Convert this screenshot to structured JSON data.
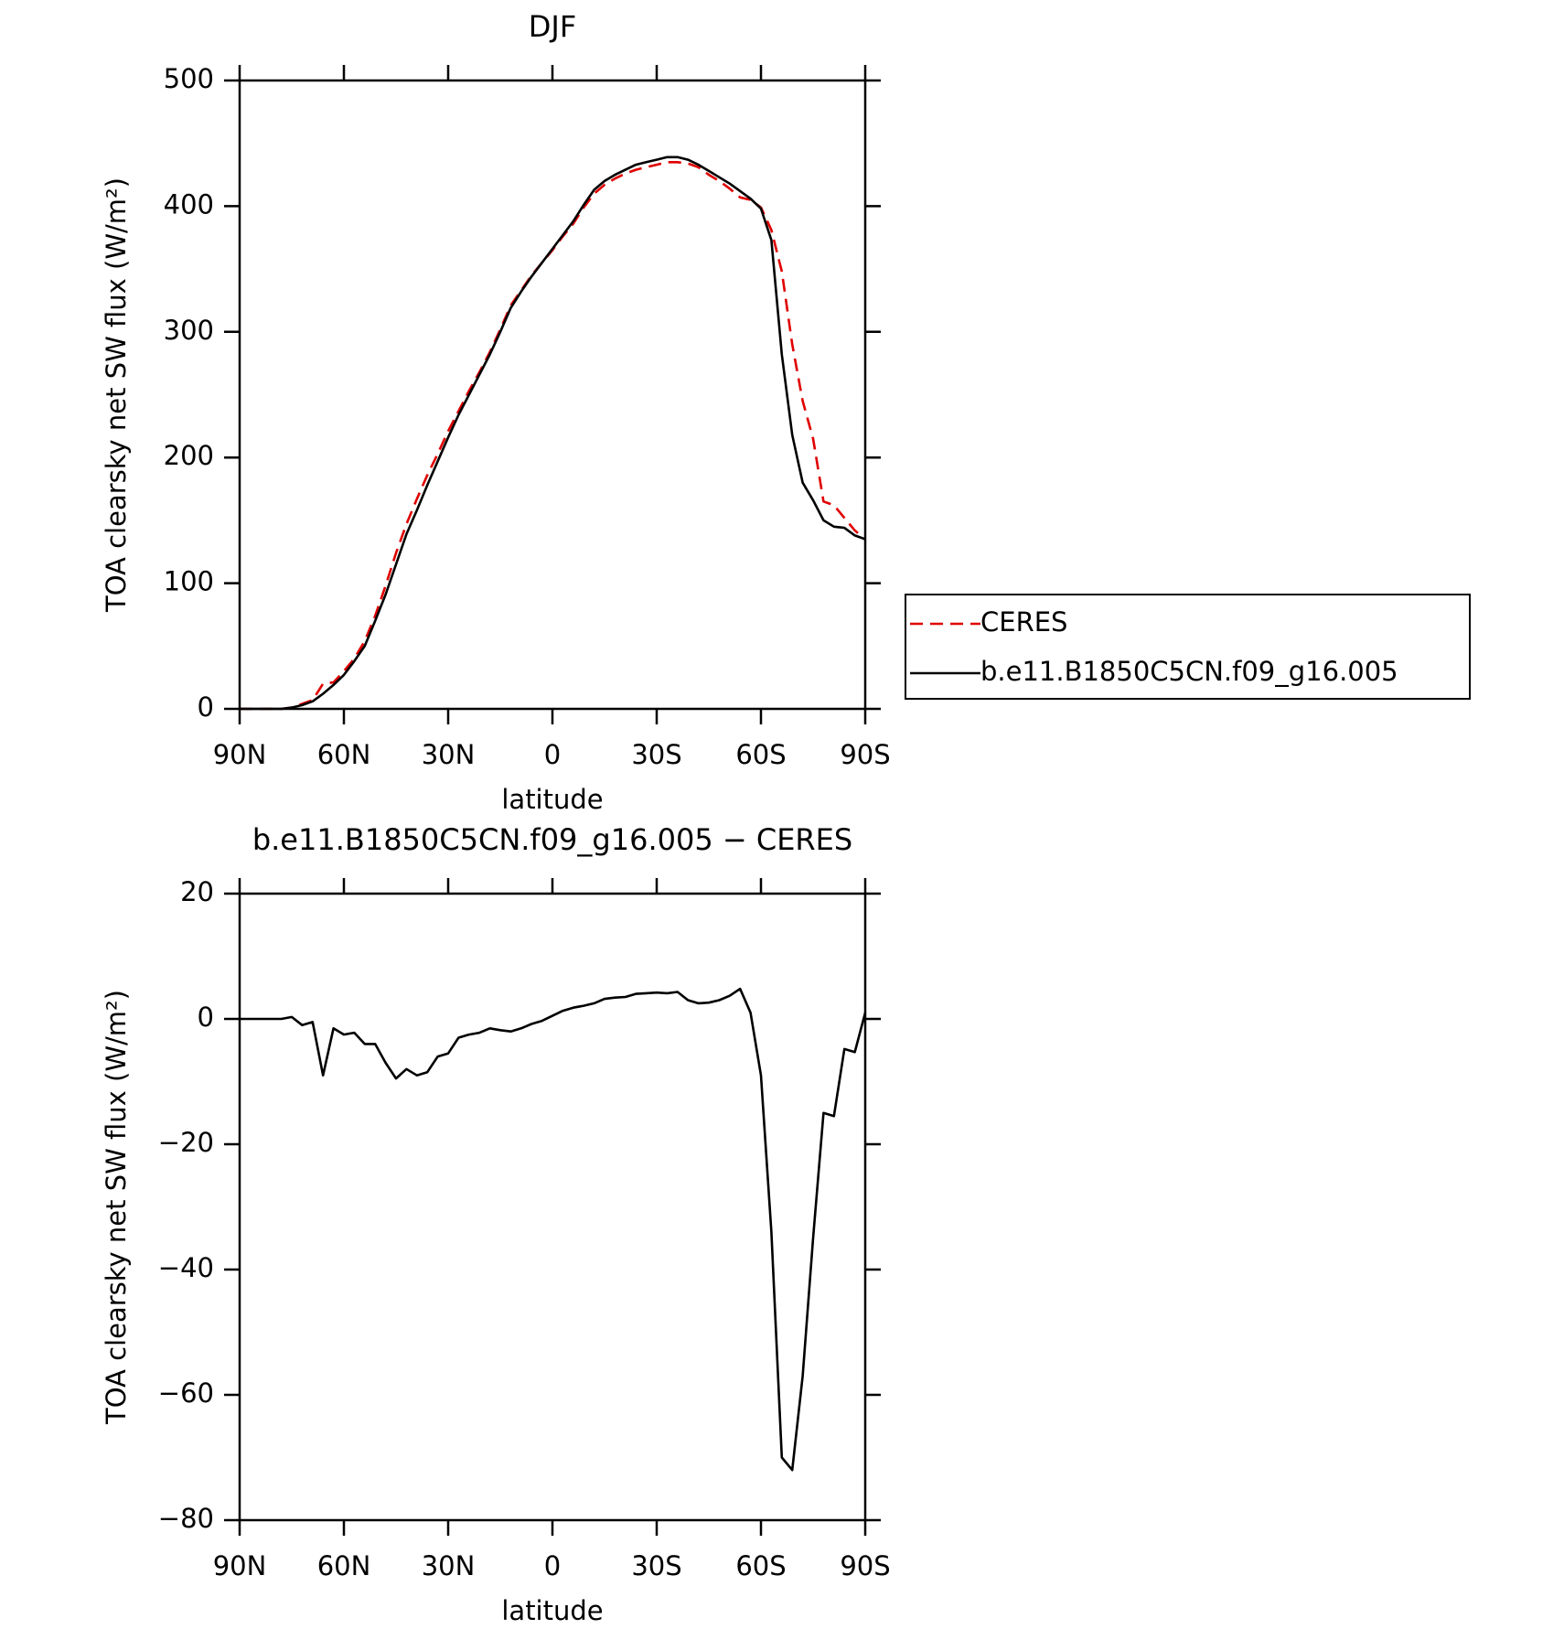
{
  "chart_data": [
    {
      "type": "line",
      "title": "DJF",
      "xlabel": "latitude",
      "ylabel": "TOA clearsky net SW flux (W/m²)",
      "x": [
        90,
        87,
        84,
        81,
        78,
        75,
        72,
        69,
        66,
        63,
        60,
        57,
        54,
        51,
        48,
        45,
        42,
        39,
        36,
        33,
        30,
        27,
        24,
        21,
        18,
        15,
        12,
        9,
        6,
        3,
        0,
        -3,
        -6,
        -9,
        -12,
        -15,
        -18,
        -21,
        -24,
        -27,
        -30,
        -33,
        -36,
        -39,
        -42,
        -45,
        -48,
        -51,
        -54,
        -57,
        -60,
        -63,
        -66,
        -69,
        -72,
        -75,
        -78,
        -81,
        -84,
        -87,
        -90
      ],
      "series": [
        {
          "name": "CERES",
          "color": "#e00000",
          "linestyle": "dashed",
          "values": [
            0,
            0,
            0,
            0,
            0,
            1,
            4,
            7,
            20,
            21,
            30,
            40,
            54,
            74,
            98,
            124,
            147,
            167,
            186,
            203,
            221,
            237,
            253,
            268,
            284,
            302,
            321,
            333,
            345,
            355,
            365,
            376,
            386,
            399,
            410,
            417,
            422,
            426,
            429,
            431,
            433,
            435,
            435,
            434,
            431,
            425,
            420,
            414,
            407,
            405,
            399,
            381,
            348,
            290,
            245,
            215,
            165,
            162,
            152,
            142,
            135
          ]
        },
        {
          "name": "b.e11.B1850C5CN.f09_g16.005",
          "color": "#000000",
          "linestyle": "solid",
          "values": [
            0,
            0,
            0,
            0,
            0,
            1,
            3,
            6,
            12,
            19,
            27,
            38,
            50,
            70,
            91,
            115,
            139,
            158,
            178,
            197,
            216,
            234,
            250,
            266,
            282,
            300,
            319,
            332,
            344,
            355,
            366,
            377,
            388,
            401,
            413,
            420,
            425,
            429,
            433,
            435,
            437,
            439,
            439,
            437,
            433,
            428,
            423,
            418,
            412,
            406,
            398,
            373,
            282,
            218,
            180,
            166,
            150,
            145,
            144,
            138,
            135
          ]
        }
      ],
      "xlim": [
        90,
        -90
      ],
      "xticks": [
        {
          "value": 90,
          "label": "90N"
        },
        {
          "value": 60,
          "label": "60N"
        },
        {
          "value": 30,
          "label": "30N"
        },
        0,
        {
          "value": -30,
          "label": "30S"
        },
        {
          "value": -60,
          "label": "60S"
        },
        {
          "value": -90,
          "label": "90S"
        }
      ],
      "ylim": [
        0,
        500
      ],
      "yticks": [
        0,
        100,
        200,
        300,
        400,
        500
      ],
      "legend": "right"
    },
    {
      "type": "line",
      "title": "b.e11.B1850C5CN.f09_g16.005 − CERES",
      "xlabel": "latitude",
      "ylabel": "TOA clearsky net SW flux (W/m²)",
      "x": [
        90,
        87,
        84,
        81,
        78,
        75,
        72,
        69,
        66,
        63,
        60,
        57,
        54,
        51,
        48,
        45,
        42,
        39,
        36,
        33,
        30,
        27,
        24,
        21,
        18,
        15,
        12,
        9,
        6,
        3,
        0,
        -3,
        -6,
        -9,
        -12,
        -15,
        -18,
        -21,
        -24,
        -27,
        -30,
        -33,
        -36,
        -39,
        -42,
        -45,
        -48,
        -51,
        -54,
        -57,
        -60,
        -63,
        -66,
        -69,
        -72,
        -75,
        -78,
        -81,
        -84,
        -87,
        -90
      ],
      "series": [
        {
          "color": "#000000",
          "linestyle": "solid",
          "values": [
            0,
            0,
            0,
            0,
            0,
            0.3,
            -1,
            -0.5,
            -9,
            -1.5,
            -2.5,
            -2.2,
            -4,
            -4,
            -7,
            -9.5,
            -8,
            -9,
            -8.5,
            -6,
            -5.5,
            -3,
            -2.5,
            -2.2,
            -1.5,
            -1.8,
            -2,
            -1.5,
            -0.8,
            -0.3,
            0.5,
            1.3,
            1.8,
            2.1,
            2.5,
            3.2,
            3.4,
            3.5,
            4,
            4.1,
            4.2,
            4.1,
            4.3,
            3,
            2.5,
            2.6,
            3,
            3.7,
            4.8,
            1,
            -9,
            -34,
            -70,
            -72,
            -57,
            -35,
            -15,
            -15.5,
            -4.8,
            -5.3,
            1
          ]
        }
      ],
      "xlim": [
        90,
        -90
      ],
      "xticks": [
        {
          "value": 90,
          "label": "90N"
        },
        {
          "value": 60,
          "label": "60N"
        },
        {
          "value": 30,
          "label": "30N"
        },
        0,
        {
          "value": -30,
          "label": "30S"
        },
        {
          "value": -60,
          "label": "60S"
        },
        {
          "value": -90,
          "label": "90S"
        }
      ],
      "ylim": [
        -80,
        20
      ],
      "yticks": [
        {
          "value": -80,
          "label": "−80"
        },
        {
          "value": -60,
          "label": "−60"
        },
        {
          "value": -40,
          "label": "−40"
        },
        {
          "value": -20,
          "label": "−20"
        },
        0,
        20
      ]
    }
  ]
}
